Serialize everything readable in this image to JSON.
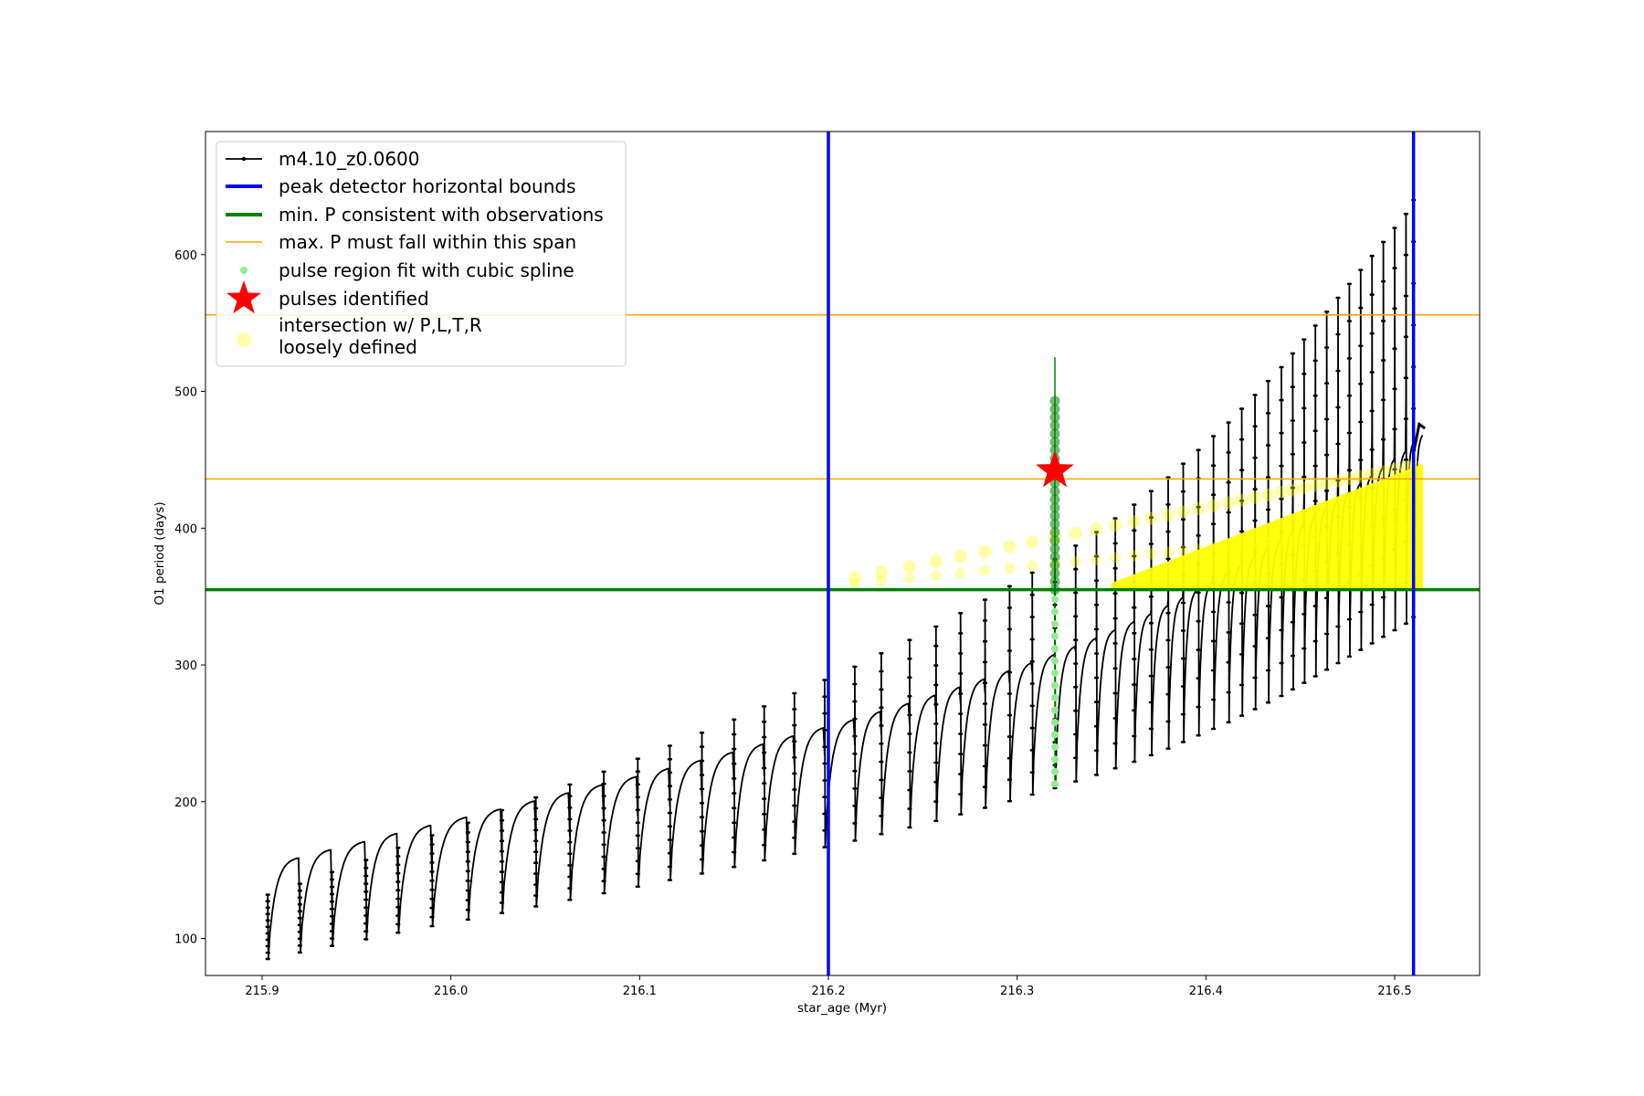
{
  "chart_data": {
    "type": "line",
    "xlabel": "star_age (Myr)",
    "ylabel": "O1 period (days)",
    "xlim": [
      215.87,
      216.545
    ],
    "ylim": [
      73,
      690
    ],
    "xticks": [
      215.9,
      216.0,
      216.1,
      216.2,
      216.3,
      216.4,
      216.5
    ],
    "xtick_labels": [
      "215.9",
      "216.0",
      "216.1",
      "216.2",
      "216.3",
      "216.4",
      "216.5"
    ],
    "yticks": [
      100,
      200,
      300,
      400,
      500,
      600
    ],
    "ytick_labels": [
      "100",
      "200",
      "300",
      "400",
      "500",
      "600"
    ],
    "grid": false,
    "legend_position": "top-left",
    "legend": [
      {
        "label": "m4.10_z0.0600",
        "kind": "line-marker",
        "color": "#000000"
      },
      {
        "label": "peak detector horizontal bounds",
        "kind": "thick-line",
        "color": "#0000ff"
      },
      {
        "label": "min. P consistent with observations",
        "kind": "thick-line",
        "color": "#008000"
      },
      {
        "label": "max. P must fall within this span",
        "kind": "thin-line",
        "color": "#ffa500"
      },
      {
        "label": "pulse region fit with cubic spline",
        "kind": "dot",
        "color": "#90ee90"
      },
      {
        "label": "pulses identified",
        "kind": "star",
        "color": "#ff0000"
      },
      {
        "label": "intersection w/ P,L,T,R\nloosely defined",
        "kind": "big-dot",
        "color": "#ffffaa"
      }
    ],
    "series": [
      {
        "name": "m4.10_z0.0600",
        "color": "#000000",
        "description": "sawtooth pulsation cycles",
        "pulse_ages": [
          215.903,
          215.92,
          215.937,
          215.955,
          215.972,
          215.99,
          216.009,
          216.027,
          216.045,
          216.063,
          216.081,
          216.099,
          216.116,
          216.133,
          216.15,
          216.166,
          216.182,
          216.198,
          216.214,
          216.228,
          216.243,
          216.257,
          216.27,
          216.283,
          216.296,
          216.308,
          216.32,
          216.331,
          216.342,
          216.352,
          216.362,
          216.371,
          216.38,
          216.388,
          216.396,
          216.404,
          216.412,
          216.419,
          216.426,
          216.433,
          216.44,
          216.446,
          216.452,
          216.458,
          216.464,
          216.47,
          216.476,
          216.482,
          216.488,
          216.494,
          216.5,
          216.506,
          216.51
        ],
        "min_start": 85,
        "min_end": 335,
        "max_start": 132,
        "max_end": 640,
        "plateau_start": 160,
        "plateau_end": 470
      }
    ],
    "vlines": [
      {
        "x": 216.2,
        "color": "#0000ff",
        "label": "peak detector horizontal bounds"
      },
      {
        "x": 216.51,
        "color": "#0000ff",
        "label": "peak detector horizontal bounds"
      }
    ],
    "hlines": [
      {
        "y": 355,
        "color": "#008000",
        "label": "min. P consistent with observations"
      },
      {
        "y": 436,
        "color": "#ffa500",
        "label": "max. P must fall within this span"
      },
      {
        "y": 556,
        "color": "#ffa500",
        "label": "max. P must fall within this span"
      }
    ],
    "spline_fit": {
      "x": 216.32,
      "y_min": 213,
      "y_max": 525,
      "color": "#90ee90"
    },
    "pulse_identified": {
      "x": 216.32,
      "y": 442,
      "color": "#ff0000"
    },
    "intersection_region": {
      "x_start": 216.2,
      "x_end": 216.515,
      "y_min": 355,
      "y_max": 447,
      "color": "#ffff00"
    }
  }
}
